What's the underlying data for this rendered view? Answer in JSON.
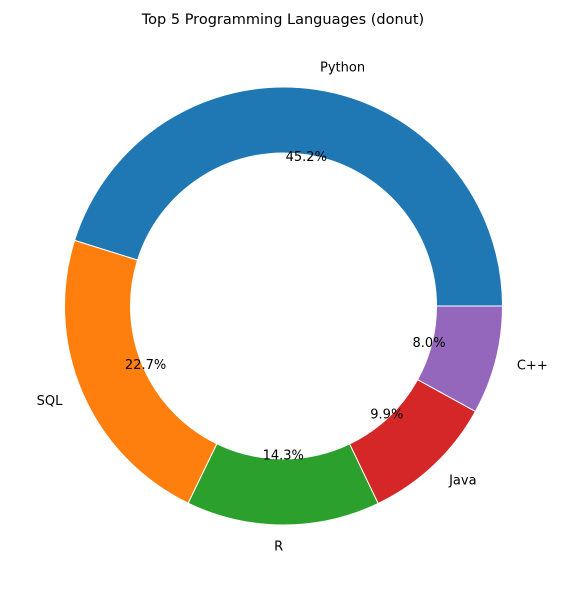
{
  "chart_data": {
    "type": "pie",
    "donut": true,
    "title": "Top 5 Programming Languages (donut)",
    "categories": [
      "Python",
      "SQL",
      "R",
      "Java",
      "C++"
    ],
    "values": [
      45.2,
      22.7,
      14.3,
      9.9,
      8.0
    ],
    "percent_labels": [
      "45.2%",
      "22.7%",
      "14.3%",
      "9.9%",
      "8.0%"
    ],
    "colors": [
      "#1f77b4",
      "#ff7f0e",
      "#2ca02c",
      "#d62728",
      "#9467bd"
    ],
    "start_angle_deg": 0,
    "direction": "counterclockwise",
    "legend": "none"
  }
}
